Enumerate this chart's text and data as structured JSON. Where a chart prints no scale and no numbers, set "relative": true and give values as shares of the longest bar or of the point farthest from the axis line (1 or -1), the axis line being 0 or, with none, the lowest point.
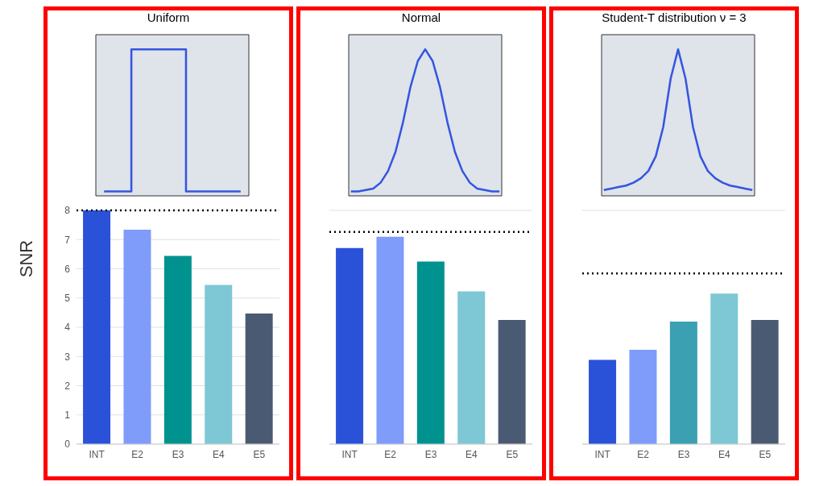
{
  "chart_data": [
    {
      "type": "step",
      "title": "Uniform",
      "relative": true,
      "categories": [
        null,
        null,
        null,
        null,
        null,
        null
      ],
      "tick_labels": false,
      "marker": "none",
      "series": [
        {
          "color": "#3355e0",
          "values": [
            0.03,
            1,
            1,
            0.03,
            0.03,
            0.03
          ]
        }
      ]
    },
    {
      "type": "bar",
      "ylabel": "SNR",
      "categories": [
        "INT",
        "E2",
        "E3",
        "E4",
        "E5"
      ],
      "values": [
        8.0,
        7.34,
        6.44,
        5.45,
        4.47
      ],
      "colors": [
        "#2a52d9",
        "#7f9cfa",
        "#00928f",
        "#7ec7d4",
        "#4a5a73"
      ],
      "ylim": [
        0,
        8
      ],
      "yticks": [
        0,
        1,
        2,
        3,
        4,
        5,
        6,
        7,
        8
      ],
      "grid": "y",
      "ref_lines": [
        {
          "axis": "y",
          "value": 8.0,
          "color": "#000000",
          "line_style": "dotted"
        }
      ]
    },
    {
      "type": "line",
      "title": "Normal",
      "relative": true,
      "categories": [
        null,
        null,
        null,
        null,
        null,
        null,
        null,
        null,
        null,
        null,
        null,
        null,
        null,
        null,
        null,
        null,
        null,
        null,
        null,
        null,
        null
      ],
      "tick_labels": false,
      "marker": "none",
      "series": [
        {
          "color": "#3355e0",
          "values": [
            0.03,
            0.03,
            0.04,
            0.05,
            0.09,
            0.17,
            0.3,
            0.5,
            0.74,
            0.92,
            1,
            0.92,
            0.74,
            0.5,
            0.3,
            0.17,
            0.09,
            0.05,
            0.04,
            0.03,
            0.03
          ]
        }
      ]
    },
    {
      "type": "bar",
      "categories": [
        "INT",
        "E2",
        "E3",
        "E4",
        "E5"
      ],
      "values": [
        6.71,
        7.1,
        6.25,
        5.23,
        4.25
      ],
      "colors": [
        "#2a52d9",
        "#7f9cfa",
        "#00928f",
        "#7ec7d4",
        "#4a5a73"
      ],
      "ylim": [
        0,
        8
      ],
      "yticks": [
        0,
        1,
        2,
        3,
        4,
        5,
        6,
        7,
        8
      ],
      "grid": "y",
      "tick_labels": "x",
      "ref_lines": [
        {
          "axis": "y",
          "value": 7.26,
          "color": "#000000",
          "line_style": "dotted"
        }
      ]
    },
    {
      "type": "line",
      "title": "Student-T distribution ν = 3",
      "relative": true,
      "categories": [
        null,
        null,
        null,
        null,
        null,
        null,
        null,
        null,
        null,
        null,
        null,
        null,
        null,
        null,
        null,
        null,
        null,
        null,
        null,
        null,
        null
      ],
      "tick_labels": false,
      "marker": "none",
      "series": [
        {
          "color": "#3355e0",
          "values": [
            0.04,
            0.05,
            0.06,
            0.07,
            0.09,
            0.12,
            0.17,
            0.27,
            0.47,
            0.8,
            1,
            0.8,
            0.47,
            0.27,
            0.17,
            0.12,
            0.09,
            0.07,
            0.06,
            0.05,
            0.04
          ]
        }
      ]
    },
    {
      "type": "bar",
      "categories": [
        "INT",
        "E2",
        "E3",
        "E4",
        "E5"
      ],
      "values": [
        2.88,
        3.23,
        4.19,
        5.15,
        4.25
      ],
      "colors": [
        "#2a52d9",
        "#7f9cfa",
        "#3aa0b2",
        "#7ec7d4",
        "#4a5a73"
      ],
      "ylim": [
        0,
        8
      ],
      "yticks": [
        0,
        1,
        2,
        3,
        4,
        5,
        6,
        7,
        8
      ],
      "grid": "y",
      "tick_labels": "x",
      "ref_lines": [
        {
          "axis": "y",
          "value": 5.84,
          "color": "#000000",
          "line_style": "dotted"
        }
      ]
    }
  ]
}
